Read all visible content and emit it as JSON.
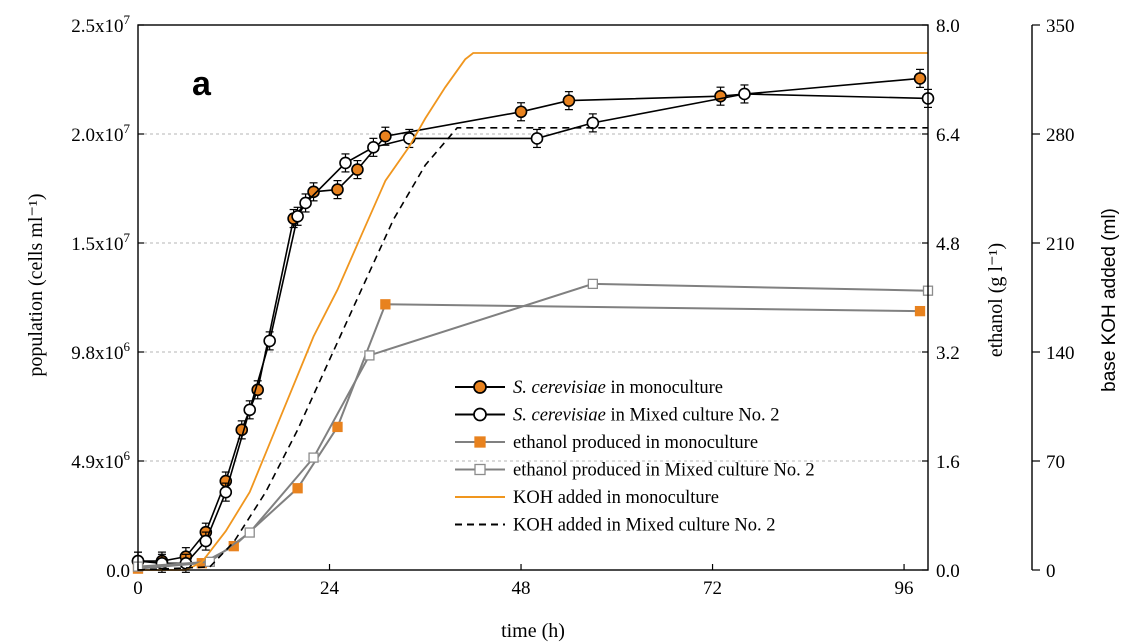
{
  "chart_data": {
    "type": "line",
    "panel_label": "a",
    "xlabel": "time (h)",
    "ylabel_left": "population (cells ml⁻¹)",
    "ylabel_right1": "ethanol (g l⁻¹)",
    "ylabel_right2": "base KOH added (ml)",
    "xlim": [
      0,
      99
    ],
    "x_ticks": [
      0,
      24,
      48,
      72,
      96
    ],
    "y_left_lim": [
      0,
      24500000
    ],
    "y_left_ticks": [
      {
        "v": 0,
        "label": "0.0"
      },
      {
        "v": 4900000,
        "label": "4.9x10⁶"
      },
      {
        "v": 9800000,
        "label": "9.8x10⁶"
      },
      {
        "v": 14700000,
        "label": "1.5x10⁷"
      },
      {
        "v": 19600000,
        "label": "2.0x10⁷"
      },
      {
        "v": 24500000,
        "label": "2.5x10⁷"
      }
    ],
    "y_right1_lim": [
      0,
      8.0
    ],
    "y_right1_ticks": [
      "0.0",
      "1.6",
      "3.2",
      "4.8",
      "6.4",
      "8.0"
    ],
    "y_right2_lim": [
      0,
      350
    ],
    "y_right2_ticks": [
      "0",
      "70",
      "140",
      "210",
      "280",
      "350"
    ],
    "grid": "horizontal-dashed",
    "legend_position": "bottom-right",
    "series": [
      {
        "name": "S. cerevisiae in monoculture",
        "legend_italic": "S. cerevisiae",
        "legend_rest": " in monoculture",
        "axis": "left",
        "style": "line-circle-filled",
        "color": "#000000",
        "marker_fill": "#E8821E",
        "x": [
          0,
          3,
          6,
          8.5,
          11,
          13,
          15,
          19.5,
          22,
          25,
          27.5,
          31,
          48,
          54,
          73,
          98
        ],
        "y": [
          400000,
          400000,
          600000,
          1700000,
          4000000,
          6300000,
          8100000,
          15800000,
          17000000,
          17100000,
          18000000,
          19500000,
          20600000,
          21100000,
          21300000,
          22100000
        ]
      },
      {
        "name": "S. cerevisiae in Mixed culture No. 2",
        "legend_italic": "S. cerevisiae",
        "legend_rest": " in Mixed culture No. 2",
        "axis": "left",
        "style": "line-circle-open",
        "color": "#000000",
        "marker_fill": "#ffffff",
        "x": [
          0,
          3,
          6,
          8.5,
          11,
          14,
          16.5,
          20,
          21,
          26,
          29.5,
          34,
          50,
          57,
          76,
          99
        ],
        "y": [
          400000,
          300000,
          300000,
          1300000,
          3500000,
          7200000,
          10300000,
          15900000,
          16500000,
          18300000,
          19000000,
          19400000,
          19400000,
          20100000,
          21400000,
          21200000
        ]
      },
      {
        "name": "ethanol produced in monoculture",
        "axis": "right1",
        "style": "line-square-filled",
        "color": "#808080",
        "marker_fill": "#E8821E",
        "x": [
          0,
          8,
          12,
          20,
          25,
          31,
          98
        ],
        "y": [
          0.02,
          0.1,
          0.35,
          1.2,
          2.1,
          3.9,
          3.8
        ]
      },
      {
        "name": "ethanol produced in Mixed culture No. 2",
        "axis": "right1",
        "style": "line-square-open",
        "color": "#808080",
        "marker_fill": "#ffffff",
        "x": [
          0,
          9,
          14,
          22,
          29,
          57,
          99
        ],
        "y": [
          0.05,
          0.12,
          0.55,
          1.65,
          3.15,
          4.2,
          4.1
        ]
      },
      {
        "name": "KOH added in monoculture",
        "axis": "right2",
        "style": "line-solid",
        "color": "#F0961E",
        "x": [
          0,
          6,
          8,
          11,
          14,
          16,
          18,
          20,
          22,
          25,
          28,
          31,
          34,
          36,
          38,
          38.5,
          41,
          42,
          99
        ],
        "y": [
          0,
          0,
          5,
          25,
          50,
          75,
          100,
          125,
          150,
          180,
          215,
          250,
          272,
          290,
          306,
          310,
          328,
          332,
          332
        ]
      },
      {
        "name": "KOH added in Mixed culture No. 2",
        "axis": "right2",
        "style": "line-dashed",
        "color": "#000000",
        "x": [
          0,
          9,
          12,
          16,
          20,
          24,
          28,
          32,
          36,
          40,
          99
        ],
        "y": [
          0,
          2,
          18,
          50,
          90,
          135,
          180,
          225,
          260,
          284,
          284
        ]
      }
    ]
  }
}
